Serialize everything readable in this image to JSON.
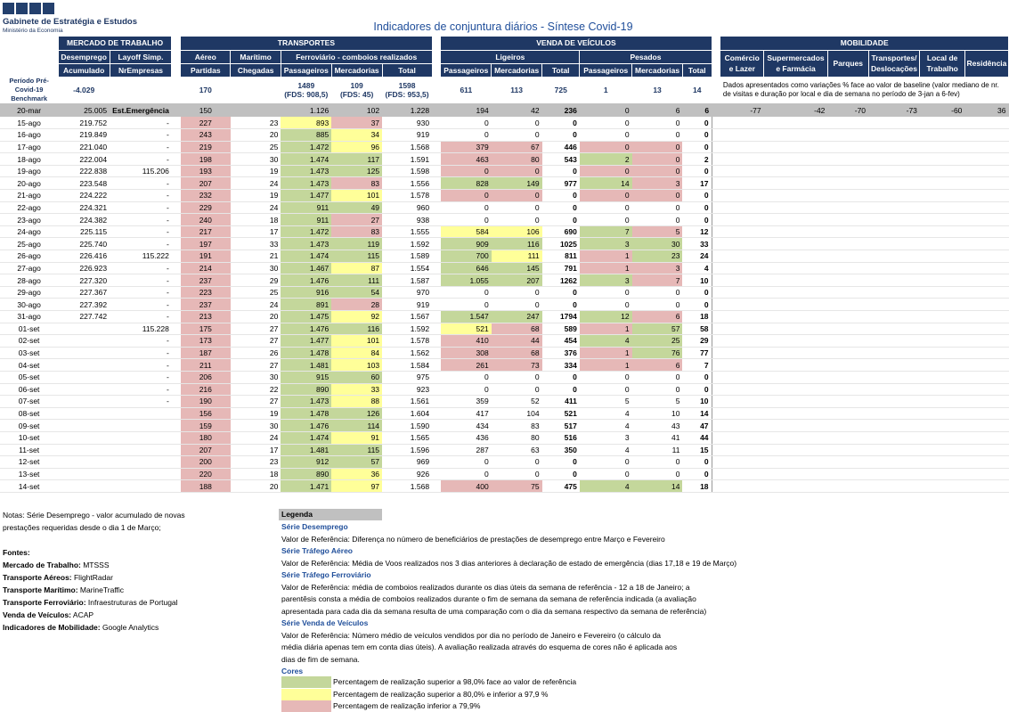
{
  "header": {
    "org_name": "Gabinete de Estratégia e Estudos",
    "org_sub": "Ministério da Economia",
    "title": "Indicadores de conjuntura diários - Síntese Covid-19"
  },
  "colors": {
    "dark_header": "#1f3864",
    "green": "#c4d79b",
    "yellow": "#ffff99",
    "pink": "#e6b8b7",
    "ref_grey": "#c0c0c0"
  },
  "groups": {
    "mercado": "MERCADO DE TRABALHO",
    "transportes": "TRANSPORTES",
    "vendas": "VENDA DE VEÍCULOS",
    "mobilidade": "MOBILIDADE"
  },
  "sub": {
    "desemprego": "Desemprego",
    "layoff": "Layoff Simp.",
    "aereo": "Aéreo",
    "maritimo": "Marítimo",
    "ferroviario": "Ferroviário - comboios realizados",
    "ligeiros": "Ligeiros",
    "pesados": "Pesados",
    "comercio": "Comércio e Lazer",
    "super": "Supermercados e Farmácia",
    "parques": "Parques",
    "transp_desl": "Transportes/ Deslocações",
    "local_trab": "Local de Trabalho",
    "residencia": "Residência"
  },
  "cols": {
    "acumulado": "Acumulado",
    "nrempresas": "NrEmpresas",
    "partidas": "Partidas",
    "chegadas": "Chegadas",
    "passageiros": "Passageiros",
    "mercadorias": "Mercadorias",
    "total": "Total"
  },
  "benchmark": {
    "label": "Período Pré-Covid-19 Benchmark",
    "desemprego": "-4.029",
    "aereo": "170",
    "ferro_pass": "1489",
    "ferro_pass_sub": "(FDS: 908,5)",
    "ferro_merc": "109",
    "ferro_merc_sub": "(FDS: 45)",
    "ferro_total": "1598",
    "ferro_total_sub": "(FDS: 953,5)",
    "lig_pass": "611",
    "lig_merc": "113",
    "lig_total": "725",
    "pes_pass": "1",
    "pes_merc": "13",
    "pes_total": "14",
    "mob_note": "Dados apresentados como variações % face ao valor de baseline (valor mediano de nr. de visitas e duração por local e dia de semana no período de 3-jan a 6-fev)"
  },
  "ref_row": {
    "date": "20-mar",
    "acum": "25.005",
    "layoff": "Est.Emergência",
    "aereo": "150",
    "fp": "1.126",
    "fm": "102",
    "ft": "1.228",
    "lp": "194",
    "lm": "42",
    "lt": "236",
    "pp": "0",
    "pm": "6",
    "pt": "6",
    "mob": [
      "-77",
      "-42",
      "-70",
      "-73",
      "-60",
      "36"
    ]
  },
  "rows": [
    {
      "date": "15-ago",
      "acum": "219.752",
      "lay": "-",
      "aer": "227",
      "mar": "23",
      "fp": "893",
      "fm": "37",
      "ft": "930",
      "lp": "0",
      "lm": "0",
      "lt": "0",
      "pp": "0",
      "pm": "0",
      "pt": "0",
      "c": {
        "aer": "p",
        "fp": "y",
        "fm": "p"
      }
    },
    {
      "date": "16-ago",
      "acum": "219.849",
      "lay": "-",
      "aer": "243",
      "mar": "20",
      "fp": "885",
      "fm": "34",
      "ft": "919",
      "lp": "0",
      "lm": "0",
      "lt": "0",
      "pp": "0",
      "pm": "0",
      "pt": "0",
      "c": {
        "aer": "p",
        "fp": "g",
        "fm": "y"
      }
    },
    {
      "date": "17-ago",
      "acum": "221.040",
      "lay": "-",
      "aer": "219",
      "mar": "25",
      "fp": "1.472",
      "fm": "96",
      "ft": "1.568",
      "lp": "379",
      "lm": "67",
      "lt": "446",
      "pp": "0",
      "pm": "0",
      "pt": "0",
      "c": {
        "aer": "p",
        "fp": "g",
        "fm": "y",
        "lp": "p",
        "lm": "p",
        "pp": "p",
        "pm": "p"
      }
    },
    {
      "date": "18-ago",
      "acum": "222.004",
      "lay": "-",
      "aer": "198",
      "mar": "30",
      "fp": "1.474",
      "fm": "117",
      "ft": "1.591",
      "lp": "463",
      "lm": "80",
      "lt": "543",
      "pp": "2",
      "pm": "0",
      "pt": "2",
      "c": {
        "aer": "p",
        "fp": "g",
        "fm": "g",
        "lp": "p",
        "lm": "p",
        "pp": "g",
        "pm": "p"
      }
    },
    {
      "date": "19-ago",
      "acum": "222.838",
      "lay": "115.206",
      "aer": "193",
      "mar": "19",
      "fp": "1.473",
      "fm": "125",
      "ft": "1.598",
      "lp": "0",
      "lm": "0",
      "lt": "0",
      "pp": "0",
      "pm": "0",
      "pt": "0",
      "c": {
        "aer": "p",
        "fp": "g",
        "fm": "g",
        "lp": "p",
        "lm": "p",
        "pp": "p",
        "pm": "p"
      }
    },
    {
      "date": "20-ago",
      "acum": "223.548",
      "lay": "-",
      "aer": "207",
      "mar": "24",
      "fp": "1.473",
      "fm": "83",
      "ft": "1.556",
      "lp": "828",
      "lm": "149",
      "lt": "977",
      "pp": "14",
      "pm": "3",
      "pt": "17",
      "c": {
        "aer": "p",
        "fp": "g",
        "fm": "p",
        "lp": "g",
        "lm": "g",
        "pp": "g",
        "pm": "p"
      }
    },
    {
      "date": "21-ago",
      "acum": "224.222",
      "lay": "-",
      "aer": "232",
      "mar": "19",
      "fp": "1.477",
      "fm": "101",
      "ft": "1.578",
      "lp": "0",
      "lm": "0",
      "lt": "0",
      "pp": "0",
      "pm": "0",
      "pt": "0",
      "c": {
        "aer": "p",
        "fp": "g",
        "fm": "y",
        "lp": "p",
        "lm": "p",
        "pp": "p",
        "pm": "p"
      }
    },
    {
      "date": "22-ago",
      "acum": "224.321",
      "lay": "-",
      "aer": "229",
      "mar": "24",
      "fp": "911",
      "fm": "49",
      "ft": "960",
      "lp": "0",
      "lm": "0",
      "lt": "0",
      "pp": "0",
      "pm": "0",
      "pt": "0",
      "c": {
        "aer": "p",
        "fp": "g",
        "fm": "g"
      }
    },
    {
      "date": "23-ago",
      "acum": "224.382",
      "lay": "-",
      "aer": "240",
      "mar": "18",
      "fp": "911",
      "fm": "27",
      "ft": "938",
      "lp": "0",
      "lm": "0",
      "lt": "0",
      "pp": "0",
      "pm": "0",
      "pt": "0",
      "c": {
        "aer": "p",
        "fp": "g",
        "fm": "p"
      }
    },
    {
      "date": "24-ago",
      "acum": "225.115",
      "lay": "-",
      "aer": "217",
      "mar": "17",
      "fp": "1.472",
      "fm": "83",
      "ft": "1.555",
      "lp": "584",
      "lm": "106",
      "lt": "690",
      "pp": "7",
      "pm": "5",
      "pt": "12",
      "c": {
        "aer": "p",
        "fp": "g",
        "fm": "p",
        "lp": "y",
        "lm": "y",
        "pp": "g",
        "pm": "p"
      }
    },
    {
      "date": "25-ago",
      "acum": "225.740",
      "lay": "-",
      "aer": "197",
      "mar": "33",
      "fp": "1.473",
      "fm": "119",
      "ft": "1.592",
      "lp": "909",
      "lm": "116",
      "lt": "1025",
      "pp": "3",
      "pm": "30",
      "pt": "33",
      "c": {
        "aer": "p",
        "fp": "g",
        "fm": "g",
        "lp": "g",
        "lm": "g",
        "pp": "g",
        "pm": "g"
      }
    },
    {
      "date": "26-ago",
      "acum": "226.416",
      "lay": "115.222",
      "aer": "191",
      "mar": "21",
      "fp": "1.474",
      "fm": "115",
      "ft": "1.589",
      "lp": "700",
      "lm": "111",
      "lt": "811",
      "pp": "1",
      "pm": "23",
      "pt": "24",
      "c": {
        "aer": "p",
        "fp": "g",
        "fm": "g",
        "lp": "g",
        "lm": "y",
        "pp": "p",
        "pm": "g"
      }
    },
    {
      "date": "27-ago",
      "acum": "226.923",
      "lay": "-",
      "aer": "214",
      "mar": "30",
      "fp": "1.467",
      "fm": "87",
      "ft": "1.554",
      "lp": "646",
      "lm": "145",
      "lt": "791",
      "pp": "1",
      "pm": "3",
      "pt": "4",
      "c": {
        "aer": "p",
        "fp": "g",
        "fm": "y",
        "lp": "g",
        "lm": "g",
        "pp": "p",
        "pm": "p"
      }
    },
    {
      "date": "28-ago",
      "acum": "227.320",
      "lay": "-",
      "aer": "237",
      "mar": "29",
      "fp": "1.476",
      "fm": "111",
      "ft": "1.587",
      "lp": "1.055",
      "lm": "207",
      "lt": "1262",
      "pp": "3",
      "pm": "7",
      "pt": "10",
      "c": {
        "aer": "p",
        "fp": "g",
        "fm": "g",
        "lp": "g",
        "lm": "g",
        "pp": "g",
        "pm": "p"
      }
    },
    {
      "date": "29-ago",
      "acum": "227.367",
      "lay": "-",
      "aer": "223",
      "mar": "25",
      "fp": "916",
      "fm": "54",
      "ft": "970",
      "lp": "0",
      "lm": "0",
      "lt": "0",
      "pp": "0",
      "pm": "0",
      "pt": "0",
      "c": {
        "aer": "p",
        "fp": "g",
        "fm": "g"
      }
    },
    {
      "date": "30-ago",
      "acum": "227.392",
      "lay": "-",
      "aer": "237",
      "mar": "24",
      "fp": "891",
      "fm": "28",
      "ft": "919",
      "lp": "0",
      "lm": "0",
      "lt": "0",
      "pp": "0",
      "pm": "0",
      "pt": "0",
      "c": {
        "aer": "p",
        "fp": "g",
        "fm": "p"
      }
    },
    {
      "date": "31-ago",
      "acum": "227.742",
      "lay": "-",
      "aer": "213",
      "mar": "20",
      "fp": "1.475",
      "fm": "92",
      "ft": "1.567",
      "lp": "1.547",
      "lm": "247",
      "lt": "1794",
      "pp": "12",
      "pm": "6",
      "pt": "18",
      "c": {
        "aer": "p",
        "fp": "g",
        "fm": "y",
        "lp": "g",
        "lm": "g",
        "pp": "g",
        "pm": "p"
      }
    },
    {
      "date": "01-set",
      "acum": "",
      "lay": "115.228",
      "aer": "175",
      "mar": "27",
      "fp": "1.476",
      "fm": "116",
      "ft": "1.592",
      "lp": "521",
      "lm": "68",
      "lt": "589",
      "pp": "1",
      "pm": "57",
      "pt": "58",
      "c": {
        "aer": "p",
        "fp": "g",
        "fm": "g",
        "lp": "y",
        "lm": "p",
        "pp": "p",
        "pm": "g"
      }
    },
    {
      "date": "02-set",
      "acum": "",
      "lay": "-",
      "aer": "173",
      "mar": "27",
      "fp": "1.477",
      "fm": "101",
      "ft": "1.578",
      "lp": "410",
      "lm": "44",
      "lt": "454",
      "pp": "4",
      "pm": "25",
      "pt": "29",
      "c": {
        "aer": "p",
        "fp": "g",
        "fm": "y",
        "lp": "p",
        "lm": "p",
        "pp": "g",
        "pm": "g"
      }
    },
    {
      "date": "03-set",
      "acum": "",
      "lay": "-",
      "aer": "187",
      "mar": "26",
      "fp": "1.478",
      "fm": "84",
      "ft": "1.562",
      "lp": "308",
      "lm": "68",
      "lt": "376",
      "pp": "1",
      "pm": "76",
      "pt": "77",
      "c": {
        "aer": "p",
        "fp": "g",
        "fm": "y",
        "lp": "p",
        "lm": "p",
        "pp": "p",
        "pm": "g"
      }
    },
    {
      "date": "04-set",
      "acum": "",
      "lay": "-",
      "aer": "211",
      "mar": "27",
      "fp": "1.481",
      "fm": "103",
      "ft": "1.584",
      "lp": "261",
      "lm": "73",
      "lt": "334",
      "pp": "1",
      "pm": "6",
      "pt": "7",
      "c": {
        "aer": "p",
        "fp": "g",
        "fm": "y",
        "lp": "p",
        "lm": "p",
        "pp": "p",
        "pm": "p"
      }
    },
    {
      "date": "05-set",
      "acum": "",
      "lay": "-",
      "aer": "206",
      "mar": "30",
      "fp": "915",
      "fm": "60",
      "ft": "975",
      "lp": "0",
      "lm": "0",
      "lt": "0",
      "pp": "0",
      "pm": "0",
      "pt": "0",
      "c": {
        "aer": "p",
        "fp": "g",
        "fm": "g"
      }
    },
    {
      "date": "06-set",
      "acum": "",
      "lay": "-",
      "aer": "216",
      "mar": "22",
      "fp": "890",
      "fm": "33",
      "ft": "923",
      "lp": "0",
      "lm": "0",
      "lt": "0",
      "pp": "0",
      "pm": "0",
      "pt": "0",
      "c": {
        "aer": "p",
        "fp": "g",
        "fm": "y"
      }
    },
    {
      "date": "07-set",
      "acum": "",
      "lay": "-",
      "aer": "190",
      "mar": "27",
      "fp": "1.473",
      "fm": "88",
      "ft": "1.561",
      "lp": "359",
      "lm": "52",
      "lt": "411",
      "pp": "5",
      "pm": "5",
      "pt": "10",
      "c": {
        "aer": "p",
        "fp": "g",
        "fm": "y"
      }
    },
    {
      "date": "08-set",
      "acum": "",
      "lay": "",
      "aer": "156",
      "mar": "19",
      "fp": "1.478",
      "fm": "126",
      "ft": "1.604",
      "lp": "417",
      "lm": "104",
      "lt": "521",
      "pp": "4",
      "pm": "10",
      "pt": "14",
      "c": {
        "aer": "p",
        "fp": "g",
        "fm": "g"
      }
    },
    {
      "date": "09-set",
      "acum": "",
      "lay": "",
      "aer": "159",
      "mar": "30",
      "fp": "1.476",
      "fm": "114",
      "ft": "1.590",
      "lp": "434",
      "lm": "83",
      "lt": "517",
      "pp": "4",
      "pm": "43",
      "pt": "47",
      "c": {
        "aer": "p",
        "fp": "g",
        "fm": "g"
      }
    },
    {
      "date": "10-set",
      "acum": "",
      "lay": "",
      "aer": "180",
      "mar": "24",
      "fp": "1.474",
      "fm": "91",
      "ft": "1.565",
      "lp": "436",
      "lm": "80",
      "lt": "516",
      "pp": "3",
      "pm": "41",
      "pt": "44",
      "c": {
        "aer": "p",
        "fp": "g",
        "fm": "y"
      }
    },
    {
      "date": "11-set",
      "acum": "",
      "lay": "",
      "aer": "207",
      "mar": "17",
      "fp": "1.481",
      "fm": "115",
      "ft": "1.596",
      "lp": "287",
      "lm": "63",
      "lt": "350",
      "pp": "4",
      "pm": "11",
      "pt": "15",
      "c": {
        "aer": "p",
        "fp": "g",
        "fm": "g"
      }
    },
    {
      "date": "12-set",
      "acum": "",
      "lay": "",
      "aer": "200",
      "mar": "23",
      "fp": "912",
      "fm": "57",
      "ft": "969",
      "lp": "0",
      "lm": "0",
      "lt": "0",
      "pp": "0",
      "pm": "0",
      "pt": "0",
      "c": {
        "aer": "p",
        "fp": "g",
        "fm": "g"
      }
    },
    {
      "date": "13-set",
      "acum": "",
      "lay": "",
      "aer": "220",
      "mar": "18",
      "fp": "890",
      "fm": "36",
      "ft": "926",
      "lp": "0",
      "lm": "0",
      "lt": "0",
      "pp": "0",
      "pm": "0",
      "pt": "0",
      "c": {
        "aer": "p",
        "fp": "g",
        "fm": "y"
      }
    },
    {
      "date": "14-set",
      "acum": "",
      "lay": "",
      "aer": "188",
      "mar": "20",
      "fp": "1.471",
      "fm": "97",
      "ft": "1.568",
      "lp": "400",
      "lm": "75",
      "lt": "475",
      "pp": "4",
      "pm": "14",
      "pt": "18",
      "c": {
        "aer": "p",
        "fp": "g",
        "fm": "y",
        "lp": "p",
        "lm": "p",
        "pp": "g",
        "pm": "g"
      }
    }
  ],
  "notes": {
    "line1": "Notas: Série Desemprego - valor acumulado de novas",
    "line2": "prestações requeridas desde o dia 1 de Março;",
    "fontes_title": "Fontes:",
    "sources": [
      {
        "k": "Mercado de Trabalho:",
        "v": " MTSSS"
      },
      {
        "k": "Transporte Aéreos:",
        "v": " FlightRadar"
      },
      {
        "k": "Transporte Marítimo:",
        "v": " MarineTraffic"
      },
      {
        "k": "Transporte Ferroviário:",
        "v": " Infraestruturas de Portugal"
      },
      {
        "k": "Venda de Veículos:",
        "v": " ACAP"
      },
      {
        "k": "Indicadores de Mobilidade:",
        "v": " Google Analytics"
      }
    ]
  },
  "legend": {
    "title": "Legenda",
    "s1": "Série Desemprego",
    "s1_t": "Valor de Referência: Diferença no número de beneficiários de prestações de desemprego entre Março e Fevereiro",
    "s2": "Série Tráfego Aéreo",
    "s2_t": "Valor de Referência: Média de Voos realizados nos 3 dias anteriores à declaração de estado de emergência (dias 17,18 e 19 de Março)",
    "s3": "Série Tráfego Ferroviário",
    "s3_t1": "Valor de Referência: média de comboios realizados durante os dias úteis da semana de referência - 12 a 18 de Janeiro; a",
    "s3_t2": "parentêsis consta a média de comboios realizados durante o fim de semana da semana de referência indicada (a avaliação",
    "s3_t3": "apresentada para cada dia da semana resulta de uma comparação com o dia da semana respectivo da semana de referência)",
    "s4": "Série Venda de Veículos",
    "s4_t1": "Valor de Referência: Número médio de veículos vendidos por dia no período de Janeiro e Fevereiro (o cálculo da",
    "s4_t2": "média diária apenas tem em conta dias úteis). A avaliação realizada através do esquema de cores não é aplicada aos",
    "s4_t3": "dias de fim de semana.",
    "cores": "Cores",
    "c1": "Percentagem de realização superior a 98,0% face ao valor de referência",
    "c2": "Percentagem de realização superior a 80,0% e inferior a 97,9 %",
    "c3": "Percentagem de realização inferior a 79,9%"
  }
}
